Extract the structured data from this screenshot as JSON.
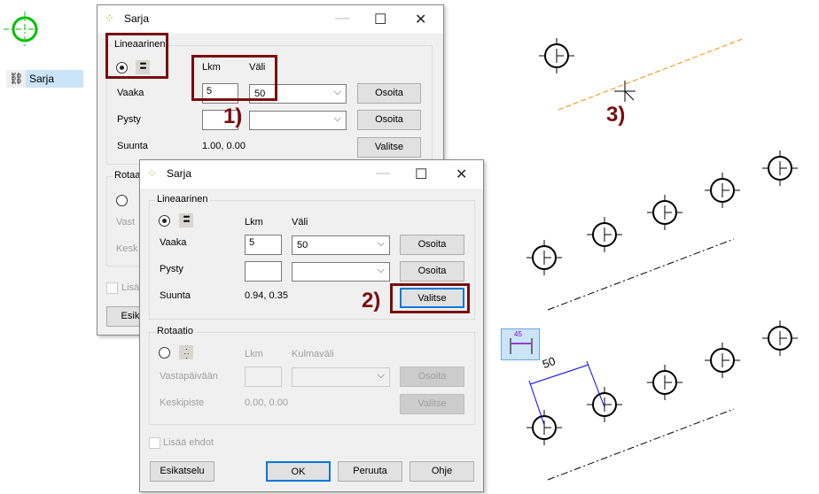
{
  "left_panel": {
    "tree_item": "Sarja",
    "colors": {
      "selected_symbol": "#00c000",
      "highlight": "#cce4f7"
    }
  },
  "dialog_back": {
    "title": "Sarja",
    "linear": {
      "group": "Lineaarinen",
      "lkm_label": "Lkm",
      "vali_label": "Väli",
      "vaaka": "Vaaka",
      "vaaka_lkm": "5",
      "vaaka_vali": "50",
      "pysty": "Pysty",
      "pysty_lkm": "",
      "pysty_vali": "",
      "suunta": "Suunta",
      "suunta_value": "1.00, 0.00",
      "osoita": "Osoita",
      "valitse": "Valitse"
    },
    "rotation": {
      "group": "Rotaa",
      "vasta": "Vast",
      "kesk": "Kesk"
    },
    "lisaa": "Lisä",
    "esikatselu": "Esika"
  },
  "dialog_front": {
    "title": "Sarja",
    "linear": {
      "group": "Lineaarinen",
      "lkm_label": "Lkm",
      "vali_label": "Väli",
      "vaaka": "Vaaka",
      "vaaka_lkm": "5",
      "vaaka_vali": "50",
      "pysty": "Pysty",
      "pysty_lkm": "",
      "pysty_vali": "",
      "suunta": "Suunta",
      "suunta_value": "0.94, 0.35",
      "osoita": "Osoita",
      "valitse": "Valitse"
    },
    "rotation": {
      "group": "Rotaatio",
      "lkm_label": "Lkm",
      "kulmavali_label": "Kulmaväli",
      "vastapaivaan": "Vastapäivään",
      "keskipiste": "Keskipiste",
      "keskipiste_value": "0.00, 0.00",
      "osoita": "Osoita",
      "valitse": "Valitse"
    },
    "lisaa_ehdot": "Lisää ehdot",
    "buttons": {
      "esikatselu": "Esikatselu",
      "ok": "OK",
      "peruuta": "Peruuta",
      "ohje": "Ohje"
    }
  },
  "annotations": {
    "step1": "1)",
    "step2": "2)",
    "step3": "3)",
    "color": "#7b0d0d"
  },
  "canvas": {
    "dimension_value": "50",
    "dimension_tool_value": "45",
    "colors": {
      "dimension": "#0000ff",
      "guide": "#ff8c00",
      "tool": "#8a00c8"
    }
  }
}
